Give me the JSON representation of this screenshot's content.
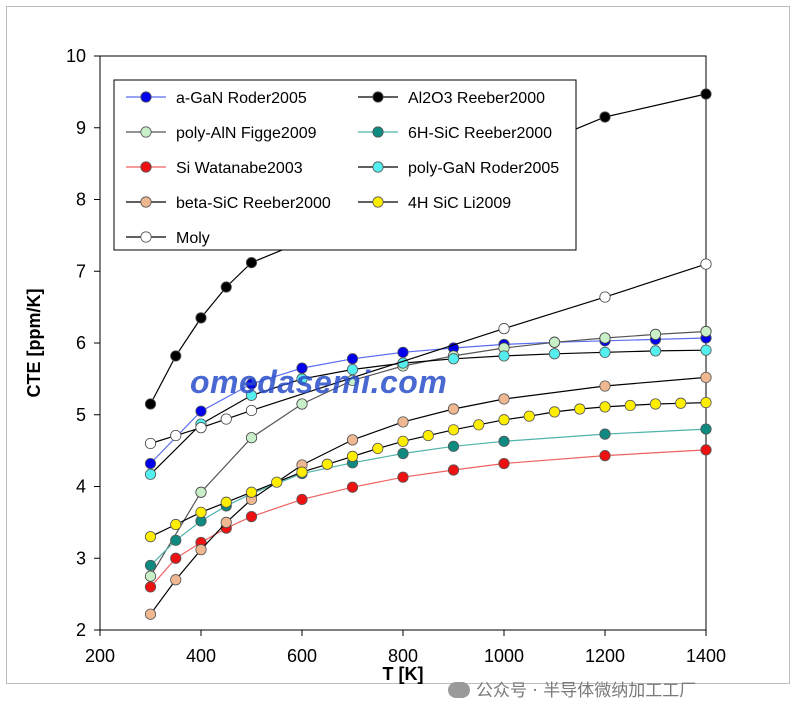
{
  "watermark": "omedasemi.com",
  "footer_watermark": "公众号 · 半导体微纳加工工厂",
  "chart_data": {
    "type": "line",
    "title": "",
    "xlabel": "T [K]",
    "ylabel": "CTE [ppm/K]",
    "xlim": [
      200,
      1400
    ],
    "ylim": [
      2,
      10
    ],
    "xticks": [
      200,
      400,
      600,
      800,
      1000,
      1200,
      1400
    ],
    "yticks": [
      2,
      3,
      4,
      5,
      6,
      7,
      8,
      9,
      10
    ],
    "grid": false,
    "legend_placement": "top-left",
    "series": [
      {
        "name": "a-GaN Roder2005",
        "color": "#0000ee",
        "line": "#5a6cf0",
        "marker": "filled",
        "x": [
          300,
          400,
          500,
          600,
          700,
          800,
          900,
          1000,
          1100,
          1200,
          1300,
          1400
        ],
        "y": [
          4.32,
          5.05,
          5.43,
          5.65,
          5.78,
          5.87,
          5.93,
          5.98,
          6.01,
          6.03,
          6.05,
          6.07
        ]
      },
      {
        "name": "Al2O3 Reeber2000",
        "color": "#000000",
        "line": "#000000",
        "marker": "filled",
        "x": [
          300,
          350,
          400,
          450,
          500,
          1200,
          1400
        ],
        "y": [
          5.15,
          5.82,
          6.35,
          6.78,
          7.12,
          9.15,
          9.47
        ]
      },
      {
        "name": "poly-AlN Figge2009",
        "color": "#c8efc8",
        "line": "#555555",
        "marker": "light",
        "x": [
          300,
          400,
          500,
          600,
          700,
          800,
          900,
          1000,
          1100,
          1200,
          1300,
          1400
        ],
        "y": [
          2.75,
          3.92,
          4.68,
          5.15,
          5.48,
          5.68,
          5.82,
          5.93,
          6.01,
          6.07,
          6.12,
          6.16
        ]
      },
      {
        "name": "6H-SiC Reeber2000",
        "color": "#0e8a80",
        "line": "#4fb3ab",
        "marker": "filled",
        "x": [
          300,
          350,
          400,
          450,
          500,
          600,
          700,
          800,
          900,
          1000,
          1200,
          1400
        ],
        "y": [
          2.9,
          3.25,
          3.52,
          3.73,
          3.9,
          4.18,
          4.33,
          4.46,
          4.56,
          4.63,
          4.73,
          4.8
        ]
      },
      {
        "name": "Si Watanabe2003",
        "color": "#ee1111",
        "line": "#f06060",
        "marker": "filled",
        "x": [
          300,
          350,
          400,
          450,
          500,
          600,
          700,
          800,
          900,
          1000,
          1200,
          1400
        ],
        "y": [
          2.6,
          3.0,
          3.22,
          3.42,
          3.58,
          3.82,
          3.99,
          4.13,
          4.23,
          4.32,
          4.43,
          4.51
        ]
      },
      {
        "name": "poly-GaN Roder2005",
        "color": "#55eeee",
        "line": "#000000",
        "marker": "filled",
        "x": [
          300,
          400,
          500,
          600,
          700,
          800,
          900,
          1000,
          1100,
          1200,
          1300,
          1400
        ],
        "y": [
          4.17,
          4.87,
          5.27,
          5.5,
          5.63,
          5.72,
          5.78,
          5.82,
          5.85,
          5.87,
          5.89,
          5.9
        ]
      },
      {
        "name": "beta-SiC Reeber2000",
        "color": "#f0b890",
        "line": "#000000",
        "marker": "filled",
        "x": [
          300,
          350,
          400,
          450,
          500,
          600,
          700,
          800,
          900,
          1000,
          1200,
          1400
        ],
        "y": [
          2.22,
          2.7,
          3.12,
          3.5,
          3.82,
          4.3,
          4.65,
          4.9,
          5.08,
          5.22,
          5.4,
          5.52
        ]
      },
      {
        "name": "4H SiC Li2009",
        "color": "#ffee00",
        "line": "#000000",
        "marker": "filled",
        "x": [
          300,
          350,
          400,
          450,
          500,
          550,
          600,
          650,
          700,
          750,
          800,
          850,
          900,
          950,
          1000,
          1050,
          1100,
          1150,
          1200,
          1250,
          1300,
          1350,
          1400
        ],
        "y": [
          3.3,
          3.47,
          3.64,
          3.78,
          3.92,
          4.06,
          4.2,
          4.31,
          4.42,
          4.53,
          4.63,
          4.71,
          4.79,
          4.86,
          4.93,
          4.98,
          5.04,
          5.08,
          5.11,
          5.13,
          5.15,
          5.16,
          5.17
        ]
      },
      {
        "name": "Moly",
        "color": "#ffffff",
        "line": "#000000",
        "marker": "open",
        "x": [
          300,
          350,
          400,
          450,
          500,
          1000,
          1200,
          1400
        ],
        "y": [
          4.6,
          4.71,
          4.82,
          4.94,
          5.06,
          6.2,
          6.64,
          7.1
        ]
      }
    ]
  }
}
